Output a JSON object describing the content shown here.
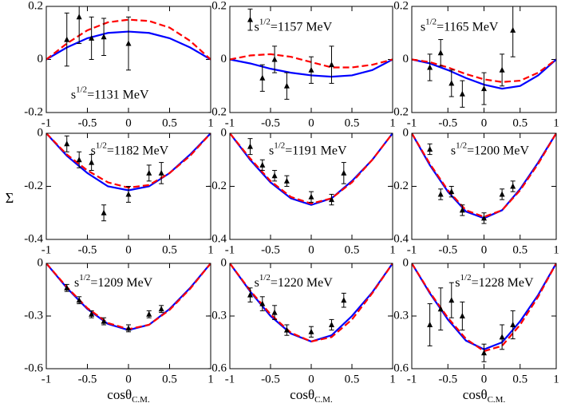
{
  "y_label": "Σ",
  "x_label": {
    "main": "cosθ",
    "sub": "C.M."
  },
  "chart_data": [
    {
      "type": "line",
      "annotation": {
        "base": "s",
        "sup": "1/2",
        "text": "=1131 MeV"
      },
      "xlim": [
        -1,
        1
      ],
      "xticks": [
        -1,
        -0.5,
        0,
        0.5,
        1
      ],
      "ylim": [
        -0.2,
        0.2
      ],
      "yticks": [
        -0.2,
        0,
        0.2
      ],
      "x": [
        -1,
        -0.75,
        -0.5,
        -0.25,
        0,
        0.25,
        0.5,
        0.75,
        1
      ],
      "series": [
        {
          "color": "#0000ff",
          "style": "solid",
          "values": [
            0,
            0.045,
            0.08,
            0.1,
            0.105,
            0.1,
            0.08,
            0.045,
            0
          ]
        },
        {
          "color": "#ff0000",
          "style": "dashed",
          "values": [
            0,
            0.06,
            0.11,
            0.14,
            0.15,
            0.145,
            0.12,
            0.07,
            0
          ]
        }
      ],
      "points": {
        "color": "#000000",
        "x": [
          -0.75,
          -0.6,
          -0.45,
          -0.3,
          0
        ],
        "values": [
          0.075,
          0.16,
          0.08,
          0.085,
          0.06
        ],
        "errors": [
          0.1,
          0.1,
          0.08,
          0.07,
          0.1
        ]
      }
    },
    {
      "type": "line",
      "annotation": {
        "base": "s",
        "sup": "1/2",
        "text": "=1157 MeV"
      },
      "xlim": [
        -1,
        1
      ],
      "xticks": [
        -1,
        -0.5,
        0,
        0.5,
        1
      ],
      "ylim": [
        -0.2,
        0.2
      ],
      "yticks": [
        -0.2,
        0,
        0.2
      ],
      "x": [
        -1,
        -0.75,
        -0.5,
        -0.25,
        0,
        0.25,
        0.5,
        0.75,
        1
      ],
      "series": [
        {
          "color": "#0000ff",
          "style": "solid",
          "values": [
            0,
            -0.015,
            -0.035,
            -0.05,
            -0.06,
            -0.065,
            -0.06,
            -0.04,
            0
          ]
        },
        {
          "color": "#ff0000",
          "style": "dashed",
          "values": [
            0,
            0.015,
            0.02,
            0.01,
            -0.01,
            -0.03,
            -0.03,
            -0.02,
            0
          ]
        }
      ],
      "points": {
        "color": "#000000",
        "x": [
          -0.75,
          -0.6,
          -0.45,
          -0.3,
          0,
          0.25
        ],
        "values": [
          0.15,
          -0.07,
          0,
          -0.1,
          -0.04,
          -0.02
        ],
        "errors": [
          0.04,
          0.05,
          0.05,
          0.05,
          0.05,
          0.07
        ]
      }
    },
    {
      "type": "line",
      "annotation": {
        "base": "s",
        "sup": "1/2",
        "text": "=1165 MeV"
      },
      "xlim": [
        -1,
        1
      ],
      "xticks": [
        -1,
        -0.5,
        0,
        0.5,
        1
      ],
      "ylim": [
        -0.2,
        0.2
      ],
      "yticks": [
        -0.2,
        0,
        0.2
      ],
      "x": [
        -1,
        -0.75,
        -0.5,
        -0.25,
        0,
        0.25,
        0.5,
        0.75,
        1
      ],
      "series": [
        {
          "color": "#0000ff",
          "style": "solid",
          "values": [
            0,
            -0.015,
            -0.04,
            -0.07,
            -0.095,
            -0.11,
            -0.1,
            -0.06,
            0
          ]
        },
        {
          "color": "#ff0000",
          "style": "dashed",
          "values": [
            0,
            -0.01,
            -0.03,
            -0.055,
            -0.075,
            -0.085,
            -0.08,
            -0.05,
            0
          ]
        }
      ],
      "points": {
        "color": "#000000",
        "x": [
          -0.75,
          -0.6,
          -0.45,
          -0.3,
          0,
          0.25,
          0.4
        ],
        "values": [
          -0.03,
          0.025,
          -0.09,
          -0.13,
          -0.11,
          -0.04,
          0.11
        ],
        "errors": [
          0.05,
          0.05,
          0.05,
          0.05,
          0.06,
          0.06,
          0.1
        ]
      }
    },
    {
      "type": "line",
      "annotation": {
        "base": "s",
        "sup": "1/2",
        "text": "=1182 MeV"
      },
      "xlim": [
        -1,
        1
      ],
      "xticks": [
        -1,
        -0.5,
        0,
        0.5,
        1
      ],
      "ylim": [
        -0.4,
        0
      ],
      "yticks": [
        -0.4,
        -0.2,
        0
      ],
      "x": [
        -1,
        -0.75,
        -0.5,
        -0.25,
        0,
        0.25,
        0.5,
        0.75,
        1
      ],
      "series": [
        {
          "color": "#0000ff",
          "style": "solid",
          "values": [
            0,
            -0.085,
            -0.15,
            -0.2,
            -0.215,
            -0.2,
            -0.15,
            -0.08,
            0
          ]
        },
        {
          "color": "#ff0000",
          "style": "dashed",
          "values": [
            0,
            -0.08,
            -0.14,
            -0.185,
            -0.205,
            -0.195,
            -0.15,
            -0.085,
            0
          ]
        }
      ],
      "points": {
        "color": "#000000",
        "x": [
          -0.75,
          -0.6,
          -0.45,
          -0.3,
          0,
          0.25,
          0.4
        ],
        "values": [
          -0.04,
          -0.1,
          -0.11,
          -0.3,
          -0.23,
          -0.15,
          -0.15
        ],
        "errors": [
          0.03,
          0.03,
          0.03,
          0.03,
          0.03,
          0.03,
          0.04
        ]
      }
    },
    {
      "type": "line",
      "annotation": {
        "base": "s",
        "sup": "1/2",
        "text": "=1191 MeV"
      },
      "xlim": [
        -1,
        1
      ],
      "xticks": [
        -1,
        -0.5,
        0,
        0.5,
        1
      ],
      "ylim": [
        -0.4,
        0
      ],
      "yticks": [
        -0.4,
        -0.2,
        0
      ],
      "x": [
        -1,
        -0.75,
        -0.5,
        -0.25,
        0,
        0.25,
        0.5,
        0.75,
        1
      ],
      "series": [
        {
          "color": "#0000ff",
          "style": "solid",
          "values": [
            0,
            -0.1,
            -0.185,
            -0.245,
            -0.27,
            -0.245,
            -0.18,
            -0.1,
            0
          ]
        },
        {
          "color": "#ff0000",
          "style": "dashed",
          "values": [
            0,
            -0.095,
            -0.18,
            -0.24,
            -0.265,
            -0.245,
            -0.185,
            -0.1,
            0
          ]
        }
      ],
      "points": {
        "color": "#000000",
        "x": [
          -0.75,
          -0.6,
          -0.45,
          -0.3,
          0,
          0.25,
          0.4
        ],
        "values": [
          -0.05,
          -0.12,
          -0.16,
          -0.18,
          -0.24,
          -0.25,
          -0.15
        ],
        "errors": [
          0.03,
          0.02,
          0.02,
          0.02,
          0.02,
          0.02,
          0.04
        ]
      }
    },
    {
      "type": "line",
      "annotation": {
        "base": "s",
        "sup": "1/2",
        "text": "=1200 MeV"
      },
      "xlim": [
        -1,
        1
      ],
      "xticks": [
        -1,
        -0.5,
        0,
        0.5,
        1
      ],
      "ylim": [
        -0.4,
        0
      ],
      "yticks": [
        -0.4,
        -0.2,
        0
      ],
      "x": [
        -1,
        -0.75,
        -0.5,
        -0.25,
        0,
        0.25,
        0.5,
        0.75,
        1
      ],
      "series": [
        {
          "color": "#0000ff",
          "style": "solid",
          "values": [
            0,
            -0.12,
            -0.22,
            -0.295,
            -0.32,
            -0.29,
            -0.21,
            -0.11,
            0
          ]
        },
        {
          "color": "#ff0000",
          "style": "dashed",
          "values": [
            0,
            -0.115,
            -0.215,
            -0.29,
            -0.315,
            -0.29,
            -0.215,
            -0.115,
            0
          ]
        }
      ],
      "points": {
        "color": "#000000",
        "x": [
          -0.75,
          -0.6,
          -0.45,
          -0.3,
          0,
          0.25,
          0.4
        ],
        "values": [
          -0.06,
          -0.23,
          -0.22,
          -0.29,
          -0.32,
          -0.23,
          -0.2
        ],
        "errors": [
          0.02,
          0.02,
          0.02,
          0.02,
          0.02,
          0.02,
          0.02
        ]
      }
    },
    {
      "type": "line",
      "annotation": {
        "base": "s",
        "sup": "1/2",
        "text": "=1209 MeV"
      },
      "xlim": [
        -1,
        1
      ],
      "xticks": [
        -1,
        -0.5,
        0,
        0.5,
        1
      ],
      "ylim": [
        -0.6,
        0
      ],
      "yticks": [
        -0.6,
        -0.3,
        0
      ],
      "x": [
        -1,
        -0.75,
        -0.5,
        -0.25,
        0,
        0.25,
        0.5,
        0.75,
        1
      ],
      "series": [
        {
          "color": "#0000ff",
          "style": "solid",
          "values": [
            0,
            -0.14,
            -0.26,
            -0.345,
            -0.38,
            -0.35,
            -0.26,
            -0.14,
            0
          ]
        },
        {
          "color": "#ff0000",
          "style": "dashed",
          "values": [
            0,
            -0.135,
            -0.255,
            -0.34,
            -0.375,
            -0.35,
            -0.265,
            -0.145,
            0
          ]
        }
      ],
      "points": {
        "color": "#000000",
        "x": [
          -0.75,
          -0.6,
          -0.45,
          -0.3,
          0,
          0.25,
          0.4
        ],
        "values": [
          -0.14,
          -0.21,
          -0.29,
          -0.33,
          -0.37,
          -0.29,
          -0.26
        ],
        "errors": [
          0.02,
          0.02,
          0.02,
          0.02,
          0.02,
          0.02,
          0.02
        ]
      }
    },
    {
      "type": "line",
      "annotation": {
        "base": "s",
        "sup": "1/2",
        "text": "=1220 MeV"
      },
      "xlim": [
        -1,
        1
      ],
      "xticks": [
        -1,
        -0.5,
        0,
        0.5,
        1
      ],
      "ylim": [
        -0.6,
        0
      ],
      "yticks": [
        -0.6,
        -0.3,
        0
      ],
      "x": [
        -1,
        -0.75,
        -0.5,
        -0.25,
        0,
        0.25,
        0.5,
        0.75,
        1
      ],
      "series": [
        {
          "color": "#0000ff",
          "style": "solid",
          "values": [
            0,
            -0.16,
            -0.3,
            -0.4,
            -0.445,
            -0.41,
            -0.3,
            -0.165,
            0
          ]
        },
        {
          "color": "#ff0000",
          "style": "dashed",
          "values": [
            0,
            -0.155,
            -0.29,
            -0.395,
            -0.445,
            -0.42,
            -0.32,
            -0.17,
            0
          ]
        }
      ],
      "points": {
        "color": "#000000",
        "x": [
          -0.75,
          -0.6,
          -0.45,
          -0.3,
          0,
          0.25,
          0.4
        ],
        "values": [
          -0.18,
          -0.23,
          -0.28,
          -0.38,
          -0.39,
          -0.35,
          -0.21
        ],
        "errors": [
          0.04,
          0.04,
          0.04,
          0.03,
          0.03,
          0.03,
          0.04
        ]
      }
    },
    {
      "type": "line",
      "annotation": {
        "base": "s",
        "sup": "1/2",
        "text": "=1228 MeV"
      },
      "xlim": [
        -1,
        1
      ],
      "xticks": [
        -1,
        -0.5,
        0,
        0.5,
        1
      ],
      "ylim": [
        -0.6,
        0
      ],
      "yticks": [
        -0.6,
        -0.3,
        0
      ],
      "x": [
        -1,
        -0.75,
        -0.5,
        -0.25,
        0,
        0.25,
        0.5,
        0.75,
        1
      ],
      "series": [
        {
          "color": "#0000ff",
          "style": "solid",
          "values": [
            0,
            -0.17,
            -0.32,
            -0.44,
            -0.49,
            -0.45,
            -0.33,
            -0.18,
            0
          ]
        },
        {
          "color": "#ff0000",
          "style": "dashed",
          "values": [
            0,
            -0.165,
            -0.31,
            -0.43,
            -0.5,
            -0.47,
            -0.35,
            -0.19,
            0
          ]
        }
      ],
      "points": {
        "color": "#000000",
        "x": [
          -0.75,
          -0.6,
          -0.45,
          -0.3,
          0,
          0.25,
          0.4
        ],
        "values": [
          -0.35,
          -0.26,
          -0.21,
          -0.3,
          -0.51,
          -0.42,
          -0.35
        ],
        "errors": [
          0.12,
          0.12,
          0.1,
          0.08,
          0.05,
          0.07,
          0.08
        ]
      }
    }
  ]
}
